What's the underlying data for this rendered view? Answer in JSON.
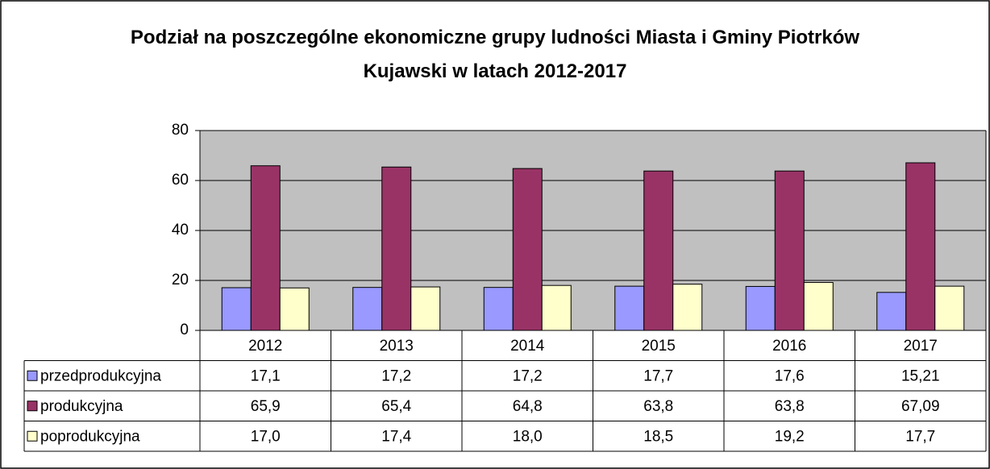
{
  "chart_data": {
    "type": "bar",
    "title": "Podział na poszczególne ekonomiczne grupy ludności Miasta i Gminy Piotrków Kujawski w latach 2012-2017",
    "categories": [
      "2012",
      "2013",
      "2014",
      "2015",
      "2016",
      "2017"
    ],
    "series": [
      {
        "name": "przedprodukcyjna",
        "color": "#9999ff",
        "values": [
          17.1,
          17.2,
          17.2,
          17.7,
          17.6,
          15.21
        ],
        "value_labels": [
          "17,1",
          "17,2",
          "17,2",
          "17,7",
          "17,6",
          "15,21"
        ]
      },
      {
        "name": "produkcyjna",
        "color": "#993366",
        "values": [
          65.9,
          65.4,
          64.8,
          63.8,
          63.8,
          67.09
        ],
        "value_labels": [
          "65,9",
          "65,4",
          "64,8",
          "63,8",
          "63,8",
          "67,09"
        ]
      },
      {
        "name": "poprodukcyjna",
        "color": "#ffffcc",
        "values": [
          17.0,
          17.4,
          18.0,
          18.5,
          19.2,
          17.7
        ],
        "value_labels": [
          "17,0",
          "17,4",
          "18,0",
          "18,5",
          "19,2",
          "17,7"
        ]
      }
    ],
    "ylim": [
      0,
      80
    ],
    "yticks": [
      0,
      20,
      40,
      60,
      80
    ],
    "grid": true,
    "plot_background": "#c0c0c0"
  }
}
